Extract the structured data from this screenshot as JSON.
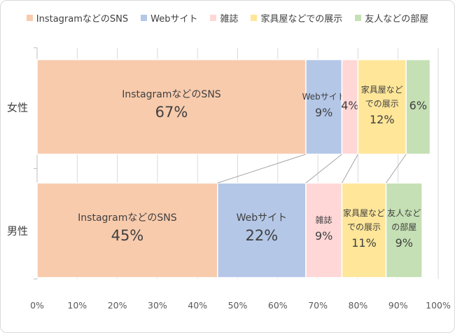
{
  "chart_data": {
    "type": "bar",
    "orientation": "horizontal",
    "stacked": "percent",
    "categories": [
      "女性",
      "男性"
    ],
    "series": [
      {
        "name": "InstagramなどのSNS",
        "color": "#f8cbad",
        "values": [
          67,
          45
        ],
        "labels": [
          [
            "InstagramなどのSNS",
            "67%"
          ],
          [
            "InstagramなどのSNS",
            "45%"
          ]
        ]
      },
      {
        "name": "Webサイト",
        "color": "#b4c7e7",
        "values": [
          9,
          22
        ],
        "labels": [
          [
            "Webサイト",
            "9%"
          ],
          [
            "Webサイト",
            "22%"
          ]
        ]
      },
      {
        "name": "雑誌",
        "color": "#ffd7d7",
        "values": [
          4,
          9
        ],
        "labels": [
          [
            "4%"
          ],
          [
            "雑誌",
            "9%"
          ]
        ]
      },
      {
        "name": "家具屋などでの展示",
        "color": "#ffe699",
        "values": [
          12,
          11
        ],
        "labels": [
          [
            "家具屋など",
            "での展示",
            "12%"
          ],
          [
            "家具屋など",
            "での展示",
            "11%"
          ]
        ]
      },
      {
        "name": "友人などの部屋",
        "color": "#c5e0b4",
        "values": [
          6,
          9
        ],
        "labels": [
          [
            "6%"
          ],
          [
            "友人など",
            "の部屋",
            "9%"
          ]
        ]
      }
    ],
    "x_ticks": [
      "0%",
      "10%",
      "20%",
      "30%",
      "40%",
      "50%",
      "60%",
      "70%",
      "80%",
      "90%",
      "100%"
    ],
    "xlim": [
      0,
      100
    ],
    "legend_position": "top",
    "series_lines": true,
    "grid": true
  }
}
